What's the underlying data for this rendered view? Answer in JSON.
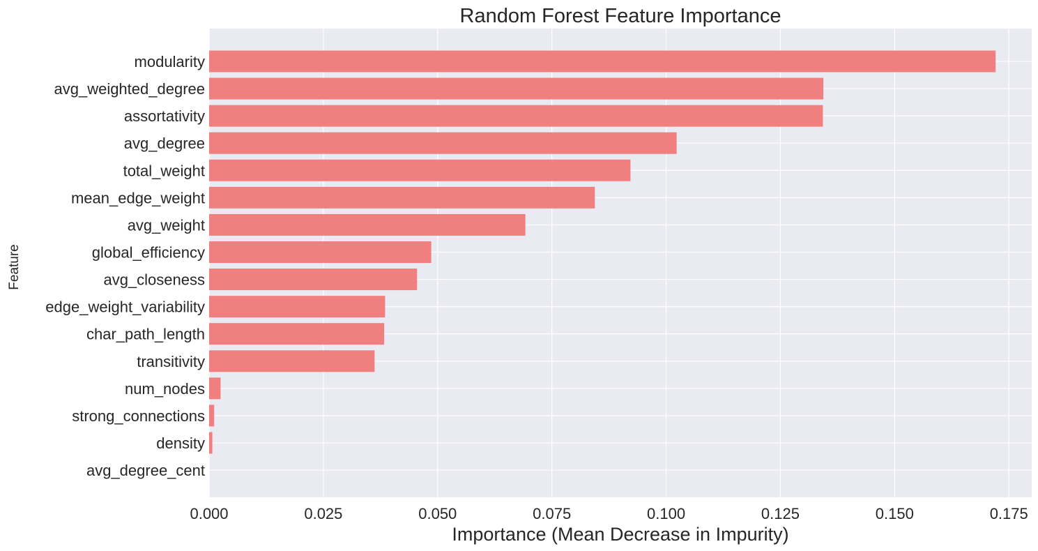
{
  "colors": {
    "bar": "#f08080",
    "plot_background": "#eaeaf2",
    "grid": "#ffffff",
    "text": "#262626"
  },
  "chart_data": {
    "type": "bar",
    "orientation": "horizontal",
    "title": "Random Forest Feature Importance",
    "xlabel": "Importance (Mean Decrease in Impurity)",
    "ylabel": "Feature",
    "xlim": [
      0,
      0.18
    ],
    "xticks": [
      "0.000",
      "0.025",
      "0.050",
      "0.075",
      "0.100",
      "0.125",
      "0.150",
      "0.175"
    ],
    "grid": true,
    "categories": [
      "modularity",
      "avg_weighted_degree",
      "assortativity",
      "avg_degree",
      "total_weight",
      "mean_edge_weight",
      "avg_weight",
      "global_efficiency",
      "avg_closeness",
      "edge_weight_variability",
      "char_path_length",
      "transitivity",
      "num_nodes",
      "strong_connections",
      "density",
      "avg_degree_cent"
    ],
    "values": [
      0.1721,
      0.1344,
      0.1343,
      0.1023,
      0.0922,
      0.0844,
      0.0692,
      0.0486,
      0.0455,
      0.0385,
      0.0383,
      0.0362,
      0.0025,
      0.0011,
      0.0007,
      0.0
    ]
  }
}
